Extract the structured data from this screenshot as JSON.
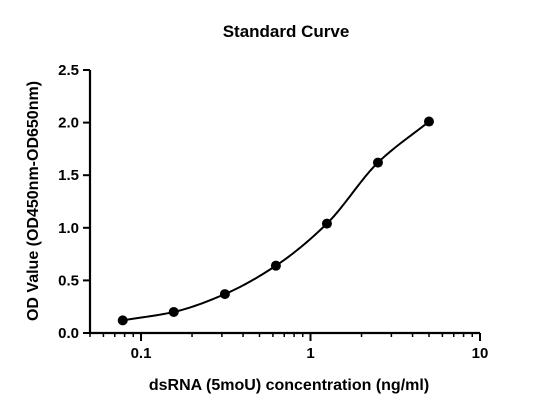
{
  "chart_data": {
    "type": "scatter",
    "title": "Standard Curve",
    "xlabel": "dsRNA (5moU) concentration (ng/ml)",
    "ylabel": "OD Value (OD450nm-OD650nm)",
    "x_scale": "log",
    "xlim": [
      0.05,
      10
    ],
    "ylim": [
      0,
      2.5
    ],
    "x_ticks": [
      0.1,
      1,
      10
    ],
    "x_tick_labels": [
      "0.1",
      "1",
      "10"
    ],
    "y_ticks": [
      0,
      0.5,
      1,
      1.5,
      2,
      2.5
    ],
    "y_tick_labels": [
      "0.0",
      "0.5",
      "1.0",
      "1.5",
      "2.0",
      "2.5"
    ],
    "grid": false,
    "legend": "none",
    "series": [
      {
        "points": [
          {
            "x": 0.078,
            "y": 0.12
          },
          {
            "x": 0.156,
            "y": 0.2
          },
          {
            "x": 0.3125,
            "y": 0.37
          },
          {
            "x": 0.625,
            "y": 0.64
          },
          {
            "x": 1.25,
            "y": 1.04
          },
          {
            "x": 2.5,
            "y": 1.62
          },
          {
            "x": 5,
            "y": 2.01
          }
        ],
        "fit_curve": true
      }
    ]
  }
}
